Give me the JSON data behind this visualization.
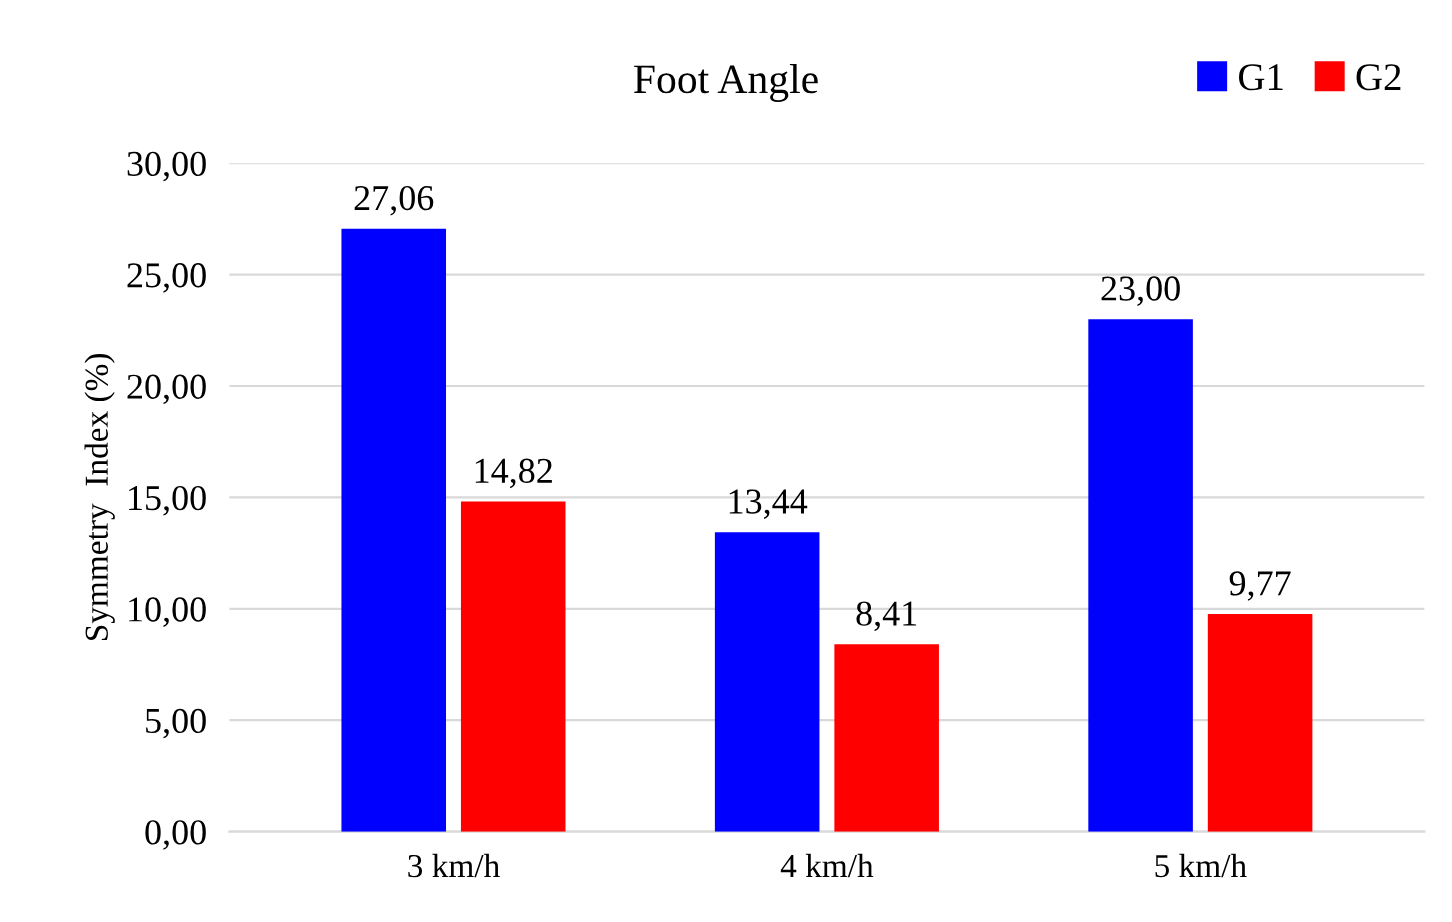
{
  "chart_data": {
    "type": "bar",
    "title": "Foot Angle",
    "ylabel": "Symmetry  Index (%)",
    "categories": [
      "3 km/h",
      "4 km/h",
      "5 km/h"
    ],
    "series": [
      {
        "name": "G1",
        "color": "#0000ff",
        "values": [
          27.06,
          13.44,
          23.0
        ],
        "value_labels": [
          "27,06",
          "13,44",
          "23,00"
        ]
      },
      {
        "name": "G2",
        "color": "#ff0000",
        "values": [
          14.82,
          8.41,
          9.77
        ],
        "value_labels": [
          "14,82",
          "8,41",
          "9,77"
        ]
      }
    ],
    "ylim": [
      0,
      30
    ],
    "yticks": [
      {
        "value": 0,
        "label": "0,00"
      },
      {
        "value": 5,
        "label": "5,00"
      },
      {
        "value": 10,
        "label": "10,00"
      },
      {
        "value": 15,
        "label": "15,00"
      },
      {
        "value": 20,
        "label": "20,00"
      },
      {
        "value": 25,
        "label": "25,00"
      },
      {
        "value": 30,
        "label": "30,00"
      }
    ],
    "grid": "y",
    "legend": "top right"
  }
}
